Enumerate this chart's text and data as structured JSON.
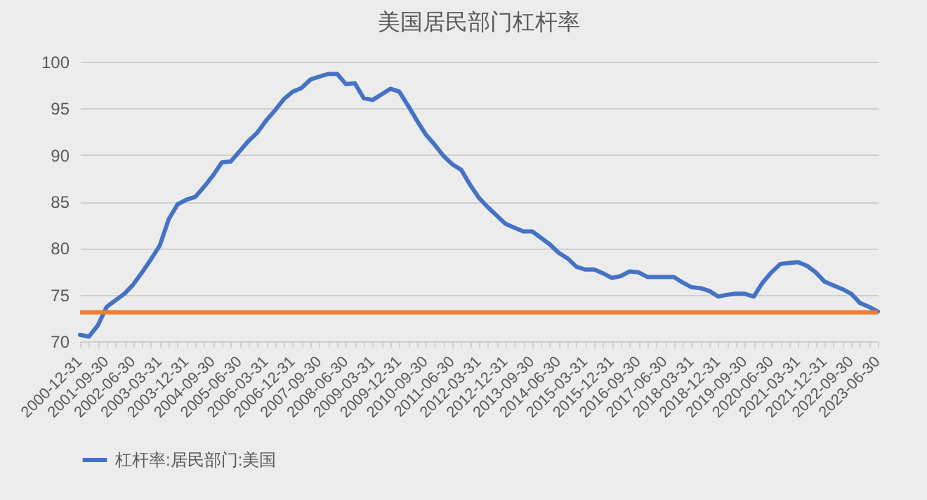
{
  "chart_data": {
    "type": "line",
    "title": "美国居民部门杠杆率",
    "categories": [
      "2000-12-31",
      null,
      null,
      "2001-09-30",
      null,
      null,
      "2002-06-30",
      null,
      null,
      "2003-03-31",
      null,
      null,
      "2003-12-31",
      null,
      null,
      "2004-09-30",
      null,
      null,
      "2005-06-30",
      null,
      null,
      "2006-03-31",
      null,
      null,
      "2006-12-31",
      null,
      null,
      "2007-09-30",
      null,
      null,
      "2008-06-30",
      null,
      null,
      "2009-03-31",
      null,
      null,
      "2009-12-31",
      null,
      null,
      "2010-09-30",
      null,
      null,
      "2011-06-30",
      null,
      null,
      "2012-03-31",
      null,
      null,
      "2012-12-31",
      null,
      null,
      "2013-09-30",
      null,
      null,
      "2014-06-30",
      null,
      null,
      "2015-03-31",
      null,
      null,
      "2015-12-31",
      null,
      null,
      "2016-09-30",
      null,
      null,
      "2017-06-30",
      null,
      null,
      "2018-03-31",
      null,
      null,
      "2018-12-31",
      null,
      null,
      "2019-09-30",
      null,
      null,
      "2020-06-30",
      null,
      null,
      "2021-03-31",
      null,
      null,
      "2021-12-31",
      null,
      null,
      "2022-09-30",
      null,
      null,
      "2023-06-30"
    ],
    "series": [
      {
        "name": "杠杆率:居民部门:美国",
        "color": "#4472c4",
        "values": [
          70.7,
          70.5,
          71.7,
          73.7,
          74.4,
          75.1,
          76.1,
          77.4,
          78.8,
          80.3,
          83.1,
          84.7,
          85.2,
          85.5,
          86.6,
          87.8,
          89.2,
          89.3,
          90.4,
          91.5,
          92.4,
          93.7,
          94.8,
          96.0,
          96.8,
          97.2,
          98.1,
          98.4,
          98.7,
          98.7,
          97.6,
          97.7,
          96.1,
          95.9,
          96.5,
          97.1,
          96.8,
          95.3,
          93.7,
          92.2,
          91.1,
          89.9,
          89.0,
          88.4,
          86.8,
          85.4,
          84.4,
          83.5,
          82.6,
          82.2,
          81.8,
          81.8,
          81.1,
          80.4,
          79.5,
          78.9,
          78.0,
          77.7,
          77.7,
          77.3,
          76.8,
          77.0,
          77.5,
          77.4,
          76.9,
          76.9,
          76.9,
          76.9,
          76.3,
          75.8,
          75.7,
          75.4,
          74.8,
          75.0,
          75.1,
          75.1,
          74.8,
          76.3,
          77.4,
          78.3,
          78.4,
          78.5,
          78.1,
          77.4,
          76.4,
          76.0,
          75.6,
          75.1,
          74.1,
          73.7,
          73.2
        ]
      }
    ],
    "ref_lines": [
      {
        "axis": "y",
        "value": 73.1,
        "color": "#ed7d31"
      }
    ],
    "ylim": [
      70,
      100
    ],
    "yticks": [
      70,
      75,
      80,
      85,
      90,
      95,
      100
    ],
    "grid": "y",
    "legend": "bottom",
    "line_style": "solid",
    "marker": "none"
  }
}
